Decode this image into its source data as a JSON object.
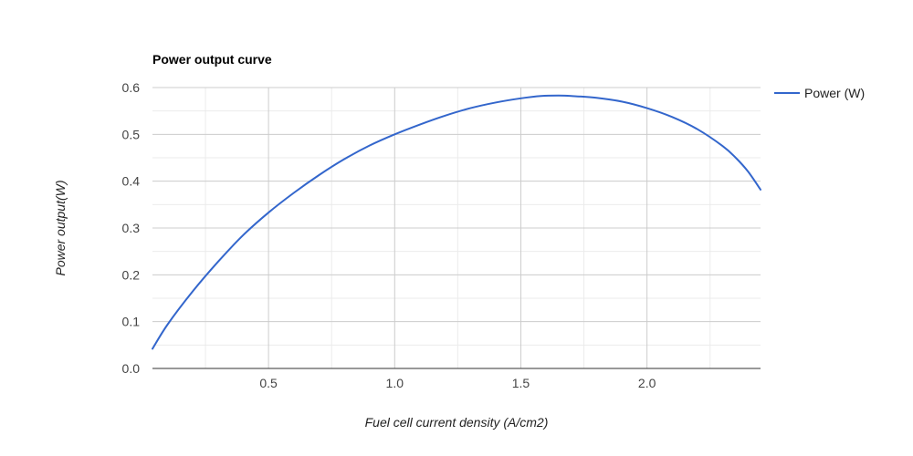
{
  "chart_data": {
    "type": "line",
    "title": "Power output curve",
    "xlabel": "Fuel cell current density (A/cm2)",
    "ylabel": "Power output(W)",
    "xlim": [
      0.04,
      2.45
    ],
    "ylim": [
      0,
      0.6
    ],
    "x_ticks": [
      "0.5",
      "1.0",
      "1.5",
      "2.0"
    ],
    "y_ticks": [
      "0.0",
      "0.1",
      "0.2",
      "0.3",
      "0.4",
      "0.5",
      "0.6"
    ],
    "grid": true,
    "legend_position": "right",
    "series": [
      {
        "name": "Power (W)",
        "color": "#3366cc",
        "x": [
          0.04,
          0.1,
          0.2,
          0.3,
          0.4,
          0.5,
          0.6,
          0.7,
          0.8,
          0.9,
          1.0,
          1.1,
          1.2,
          1.3,
          1.4,
          1.5,
          1.58,
          1.65,
          1.7,
          1.8,
          1.9,
          2.0,
          2.1,
          2.2,
          2.3,
          2.35,
          2.4,
          2.45
        ],
        "y": [
          0.042,
          0.094,
          0.165,
          0.228,
          0.285,
          0.333,
          0.375,
          0.413,
          0.447,
          0.476,
          0.5,
          0.521,
          0.54,
          0.556,
          0.568,
          0.577,
          0.582,
          0.583,
          0.582,
          0.578,
          0.57,
          0.556,
          0.537,
          0.511,
          0.475,
          0.451,
          0.421,
          0.382
        ]
      }
    ]
  }
}
